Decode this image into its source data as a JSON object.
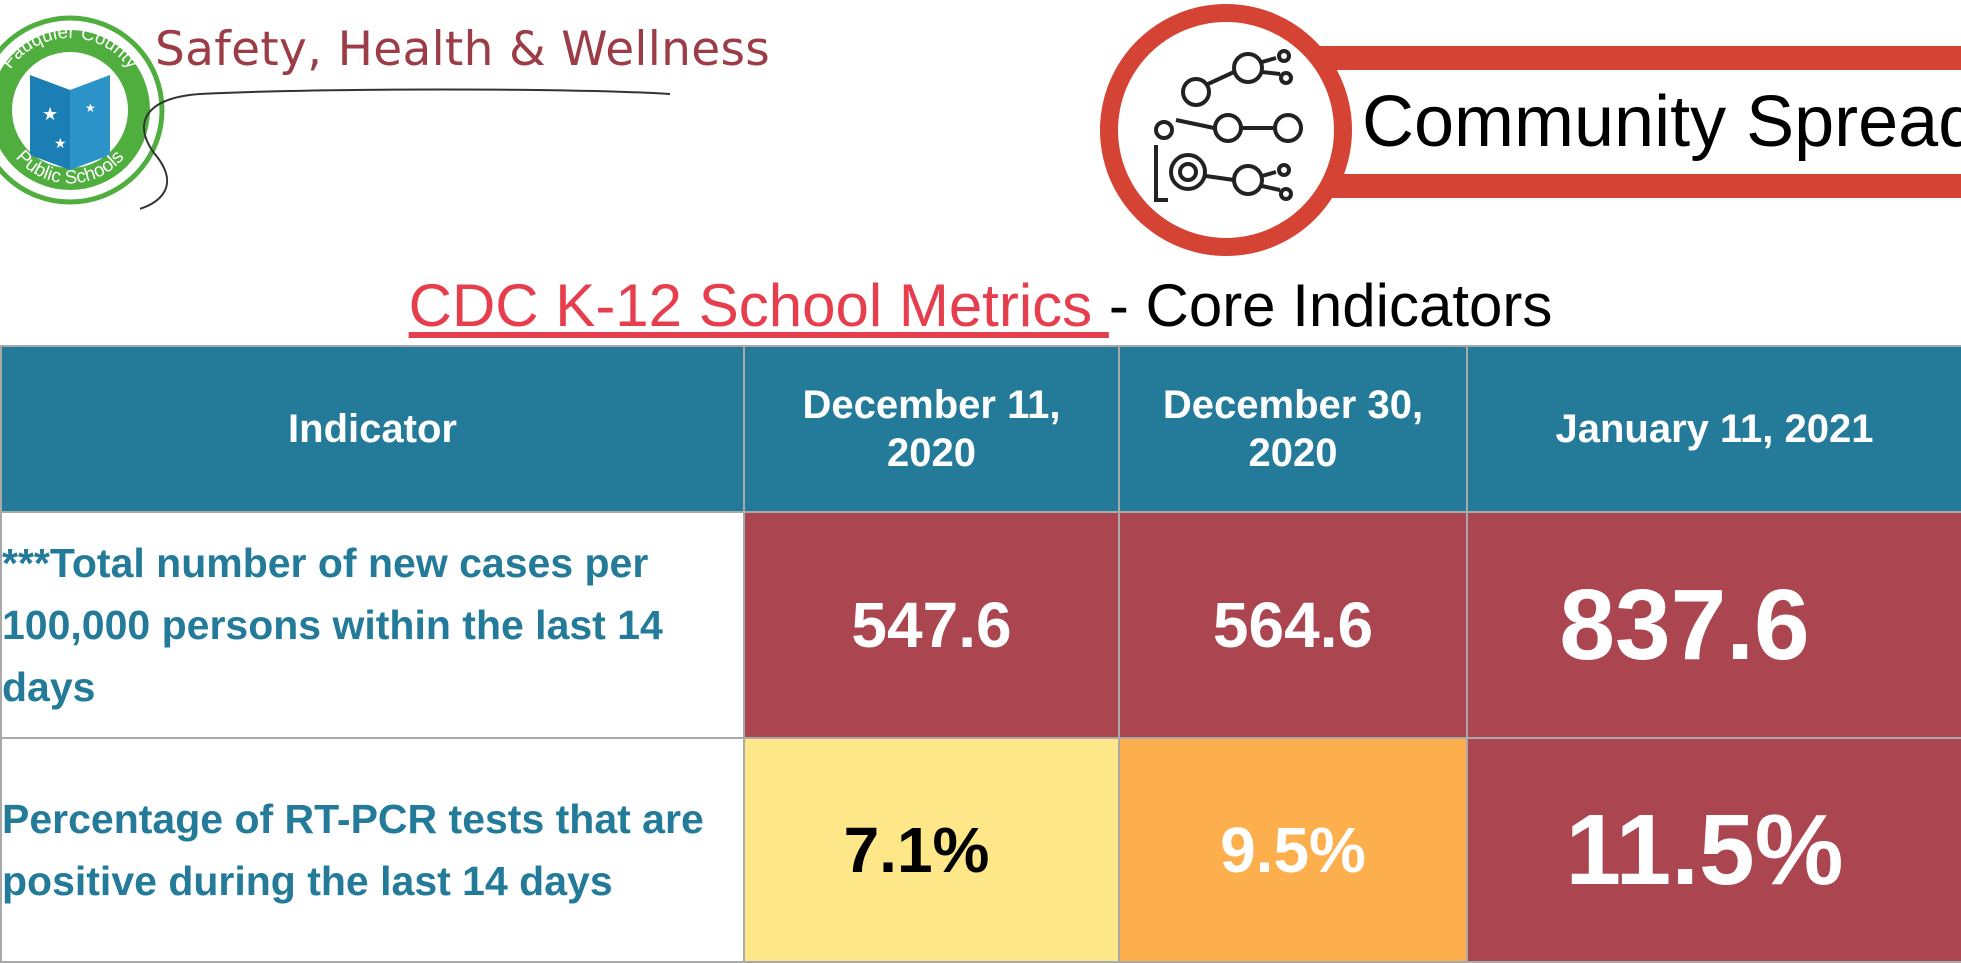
{
  "header": {
    "logo_text_top": "Fauquier County",
    "logo_text_bottom": "Public Schools",
    "org_name": "Safety, Health & Wellness",
    "banner_title": "Community Spread"
  },
  "metrics": {
    "title_link": "CDC K-12 School Metrics ",
    "title_rest": " - Core Indicators"
  },
  "table": {
    "headers": [
      "Indicator",
      "December 11, 2020",
      "December 30, 2020",
      "January 11, 2021"
    ],
    "rows": [
      {
        "indicator": "***Total number of new cases per 100,000 persons within the last 14 days",
        "values": [
          "547.6",
          "564.6",
          "837.6"
        ]
      },
      {
        "indicator": "Percentage of RT-PCR tests that are positive during the last 14 days",
        "values": [
          "7.1%",
          "9.5%",
          "11.5%"
        ]
      }
    ]
  },
  "colors": {
    "header_bg": "#237b99",
    "high": "#ab4550",
    "moderate": "#fde789",
    "substantial": "#fdaf4e",
    "banner": "#d54334"
  }
}
